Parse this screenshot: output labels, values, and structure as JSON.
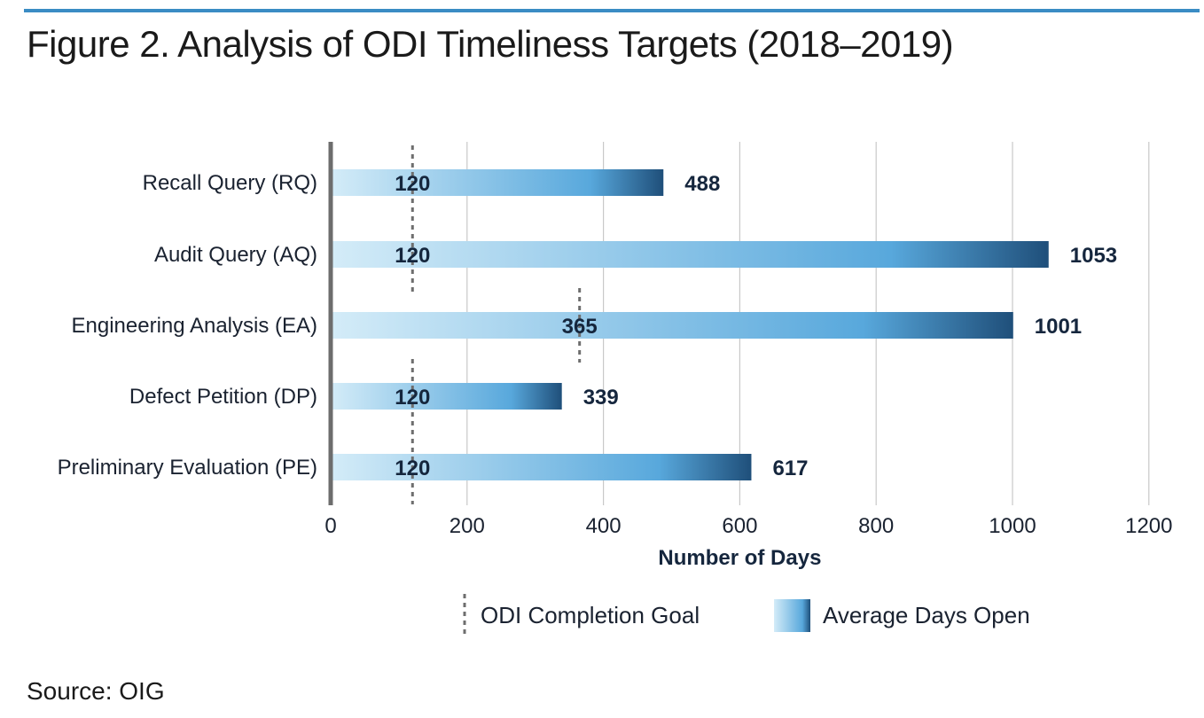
{
  "title": "Figure 2. Analysis of ODI Timeliness Targets (2018–2019)",
  "source": "Source: OIG",
  "chart_data": {
    "type": "bar",
    "orientation": "horizontal",
    "categories": [
      "Recall Query (RQ)",
      "Audit Query (AQ)",
      "Engineering Analysis (EA)",
      "Defect Petition (DP)",
      "Preliminary Evaluation (PE)"
    ],
    "series": [
      {
        "name": "Average Days Open",
        "values": [
          488,
          1053,
          1001,
          339,
          617
        ]
      },
      {
        "name": "ODI Completion Goal",
        "values": [
          120,
          120,
          365,
          120,
          120
        ]
      }
    ],
    "xlabel": "Number of Days",
    "ylabel": "",
    "xlim": [
      0,
      1200
    ],
    "xticks": [
      0,
      200,
      400,
      600,
      800,
      1000,
      1200
    ],
    "grid": "vertical",
    "legend": "bottom",
    "colors": {
      "bar_light": "#d4ecf8",
      "bar_mid": "#58a8dc",
      "bar_dark": "#1f4f7a",
      "goal_line": "#6e6e6e",
      "axis": "#6d6d6d",
      "grid": "#c8c8c8"
    }
  }
}
